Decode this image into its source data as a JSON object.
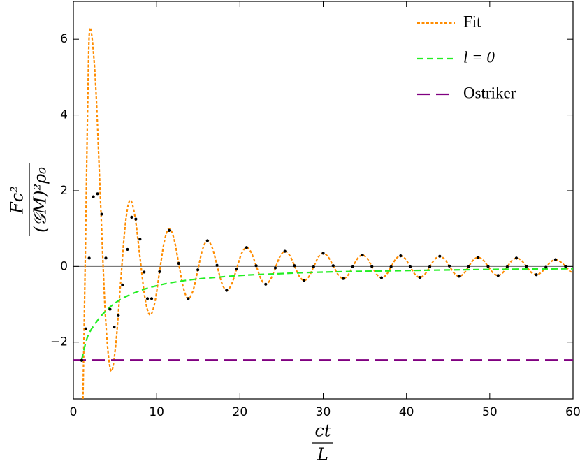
{
  "chart_data": {
    "type": "line",
    "x_label_numerator": "ct",
    "x_label_denominator": "L",
    "y_label_numerator": "Fc²",
    "y_label_denominator": "(𝒢M)²ρ₀",
    "xlim": [
      0,
      60
    ],
    "ylim": [
      -3.5,
      7
    ],
    "xticks": [
      0,
      10,
      20,
      30,
      40,
      50,
      60
    ],
    "yticks": [
      {
        "value": -2,
        "label": "−2"
      },
      0,
      2,
      4,
      6
    ],
    "zero_line": true,
    "legend": "upper right",
    "series": [
      {
        "name": "Fit",
        "color": "#ff8c00",
        "line_style": "dashed",
        "x": [
          1.15,
          1.45,
          1.75,
          2.0,
          2.63,
          3.25,
          3.88,
          4.5,
          5.08,
          5.65,
          6.23,
          6.8,
          7.4,
          8.0,
          8.6,
          9.2,
          9.78,
          10.35,
          10.93,
          11.5,
          12.08,
          12.65,
          13.23,
          13.8,
          14.38,
          14.95,
          15.53,
          16.1,
          16.68,
          17.25,
          17.83,
          18.4,
          19.0,
          19.6,
          20.2,
          20.8,
          21.38,
          21.95,
          22.53,
          23.1,
          23.68,
          24.25,
          24.83,
          25.4,
          25.98,
          26.55,
          27.13,
          27.7,
          28.28,
          28.85,
          29.43,
          30.0,
          30.6,
          31.2,
          31.8,
          32.4,
          32.98,
          33.55,
          34.13,
          34.7,
          35.28,
          35.85,
          36.43,
          37.0,
          37.58,
          38.15,
          38.73,
          39.3,
          39.88,
          40.45,
          41.03,
          41.6,
          42.2,
          42.8,
          43.4,
          44.0,
          44.58,
          45.15,
          45.73,
          46.3,
          46.88,
          47.45,
          48.03,
          48.6,
          49.2,
          49.8,
          50.4,
          51.0,
          51.55,
          52.1,
          52.65,
          53.2,
          53.8,
          54.4,
          55.0,
          55.6,
          56.18,
          56.75,
          57.33,
          57.9,
          58.5,
          59.1,
          59.6,
          60.0
        ],
        "values": [
          -3.5,
          0.5,
          4.6,
          6.3,
          4.97,
          1.78,
          -1.42,
          -2.75,
          -2.09,
          -0.5,
          1.09,
          1.75,
          1.31,
          0.24,
          -0.84,
          -1.28,
          -0.95,
          -0.14,
          0.67,
          1.0,
          0.73,
          0.08,
          -0.58,
          -0.85,
          -0.63,
          -0.09,
          0.46,
          0.68,
          0.49,
          0.03,
          -0.44,
          -0.63,
          -0.47,
          -0.07,
          0.34,
          0.5,
          0.36,
          0.02,
          -0.33,
          -0.47,
          -0.34,
          -0.04,
          0.27,
          0.4,
          0.29,
          0.02,
          -0.26,
          -0.37,
          -0.27,
          -0.01,
          0.25,
          0.35,
          0.25,
          0.02,
          -0.22,
          -0.32,
          -0.23,
          -0.01,
          0.21,
          0.3,
          0.21,
          0,
          -0.21,
          -0.3,
          -0.22,
          -0.01,
          0.2,
          0.28,
          0.2,
          -0.01,
          -0.21,
          -0.29,
          -0.21,
          -0.01,
          0.19,
          0.27,
          0.19,
          0.01,
          -0.18,
          -0.26,
          -0.19,
          -0.01,
          0.17,
          0.24,
          0.17,
          0,
          -0.17,
          -0.24,
          -0.17,
          -0.01,
          0.15,
          0.22,
          0.16,
          0,
          -0.16,
          -0.22,
          -0.16,
          -0.02,
          0.12,
          0.18,
          0.12,
          0.0,
          -0.12,
          -0.17
        ]
      },
      {
        "name": "l = 0",
        "color": "#22ee22",
        "line_style": "dashed",
        "x": [
          1.0,
          1.5,
          2,
          3,
          4,
          5,
          6,
          8,
          10,
          12,
          15,
          20,
          25,
          30,
          40,
          50,
          60
        ],
        "values": [
          -2.47,
          -2.0,
          -1.72,
          -1.4,
          -1.15,
          -0.97,
          -0.83,
          -0.64,
          -0.51,
          -0.42,
          -0.33,
          -0.24,
          -0.19,
          -0.15,
          -0.11,
          -0.08,
          -0.06
        ]
      },
      {
        "name": "Ostriker",
        "color": "#800080",
        "line_style": "long-dashed",
        "x": [
          0,
          60
        ],
        "values": [
          -2.47,
          -2.47
        ]
      },
      {
        "color": "#000000",
        "marker": "dot",
        "x": [
          1.0,
          1.5,
          1.9,
          2.4,
          2.9,
          3.4,
          3.9,
          4.4,
          4.9,
          5.4,
          5.9,
          6.5,
          7.0,
          7.5,
          8.0,
          8.5,
          8.9,
          9.4,
          10.35,
          11.5,
          12.65,
          13.8,
          14.95,
          16.1,
          17.25,
          18.4,
          19.6,
          20.8,
          21.95,
          23.1,
          24.25,
          25.4,
          26.55,
          27.7,
          28.85,
          30.0,
          31.2,
          32.4,
          33.55,
          34.7,
          35.85,
          37.0,
          38.15,
          39.3,
          40.45,
          41.6,
          42.8,
          44.0,
          45.15,
          46.3,
          47.45,
          48.6,
          49.8,
          51.0,
          52.1,
          53.2,
          54.4,
          55.6,
          56.75,
          57.9,
          59.1
        ],
        "values": [
          -2.48,
          -1.65,
          0.22,
          1.84,
          1.92,
          1.38,
          0.22,
          -1.13,
          -1.6,
          -1.3,
          -0.49,
          0.45,
          1.3,
          1.25,
          0.72,
          -0.15,
          -0.85,
          -0.85,
          -0.14,
          0.95,
          0.08,
          -0.85,
          -0.09,
          0.68,
          0.03,
          -0.63,
          -0.07,
          0.5,
          0.02,
          -0.47,
          -0.04,
          0.4,
          0.02,
          -0.37,
          -0.01,
          0.35,
          0.02,
          -0.32,
          -0.01,
          0.3,
          0,
          -0.3,
          -0.01,
          0.28,
          -0.01,
          -0.29,
          -0.01,
          0.27,
          0.01,
          -0.26,
          -0.01,
          0.24,
          0,
          -0.24,
          -0.01,
          0.22,
          0,
          -0.22,
          -0.02,
          0.18,
          0.0
        ]
      }
    ]
  }
}
